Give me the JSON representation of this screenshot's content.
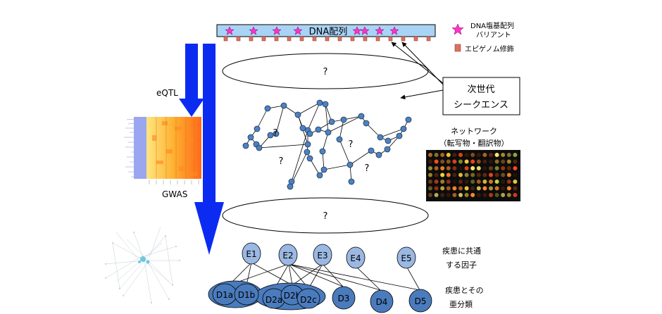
{
  "dna_bar": {
    "label": "DNA配列"
  },
  "legend": {
    "snv_line1": "DNA塩基配列",
    "snv_line2": "バリアント",
    "epigenome": "エピゲノム修飾"
  },
  "unknown_mark": "?",
  "left_labels": {
    "eqtl": "eQTL",
    "gwas": "GWAS"
  },
  "ngs_box": {
    "line1": "次世代",
    "line2": "シークエンス"
  },
  "network_label": {
    "line1": "ネットワーク",
    "line2": "（転写物・翻訳物）"
  },
  "common_factors": {
    "line1": "疾患に共通",
    "line2": "する因子"
  },
  "subtypes": {
    "line1": "疾患とその",
    "line2": "亜分類"
  },
  "factor_nodes": [
    "E1",
    "E2",
    "E3",
    "E4",
    "E5"
  ],
  "disease_nodes": [
    "D1a",
    "D1b",
    "D2a",
    "D2b",
    "D2c",
    "D3",
    "D4",
    "D5"
  ],
  "colors": {
    "dna_fill": "#a9d3f5",
    "star": "#ff33cc",
    "epigenome": "#e07060",
    "arrow_blue": "#0b2cf0",
    "factor_fill": "#9ab8e2",
    "disease_fill": "#4a7bbd",
    "network_node": "#4f81bd"
  }
}
